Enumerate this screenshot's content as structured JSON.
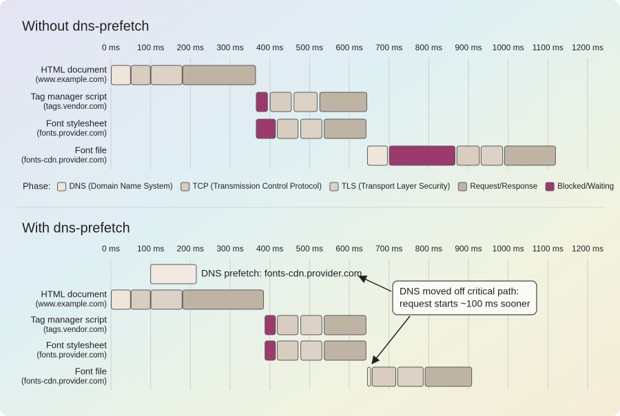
{
  "chart_data": [
    {
      "type": "gantt",
      "title": "Without dns-prefetch",
      "categories": [
        [
          "HTML document",
          "(www.example.com)"
        ],
        [
          "Tag manager script",
          "(tags.vendor.com)"
        ],
        [
          "Font stylesheet",
          "(fonts.provider.com)"
        ],
        [
          "Font file",
          "(fonts-cdn.provider.com)"
        ]
      ],
      "xlim": [
        0,
        1200
      ],
      "xticks": [
        {
          "value": 0,
          "label": "0 ms"
        },
        {
          "value": 100,
          "label": "100 ms"
        },
        {
          "value": 200,
          "label": "200 ms"
        },
        {
          "value": 300,
          "label": "300 ms"
        },
        {
          "value": 400,
          "label": "400 ms"
        },
        {
          "value": 500,
          "label": "500 ms"
        },
        {
          "value": 600,
          "label": "600 ms"
        },
        {
          "value": 700,
          "label": "700 ms"
        },
        {
          "value": 800,
          "label": "800 ms"
        },
        {
          "value": 900,
          "label": "900 ms"
        },
        {
          "value": 1000,
          "label": "1000 ms"
        },
        {
          "value": 1100,
          "label": "1100 ms"
        },
        {
          "value": 1200,
          "label": "1200 ms"
        }
      ],
      "grid": true,
      "legend_title": "Phase:",
      "series": [
        {
          "name": "DNS (Domain Name System)",
          "color": "#eee5db",
          "values": [
            [
              0,
              50
            ],
            null,
            null,
            [
              645,
              697
            ]
          ]
        },
        {
          "name": "TCP (Transmission Control Protocol)",
          "color": "#d8cdbf",
          "values": [
            [
              50,
              100
            ],
            [
              400,
              455
            ],
            [
              418,
              472
            ],
            [
              870,
              928
            ]
          ]
        },
        {
          "name": "TLS (Transport Layer Security)",
          "color": "#dcd2c5",
          "values": [
            [
              100,
              180
            ],
            [
              460,
              520
            ],
            [
              477,
              532
            ],
            [
              931,
              987
            ]
          ]
        },
        {
          "name": "Request/Response",
          "color": "#bfb4a4",
          "values": [
            [
              180,
              365
            ],
            [
              525,
              645
            ],
            [
              536,
              643
            ],
            [
              990,
              1120
            ]
          ]
        },
        {
          "name": "Blocked/Waiting",
          "color": "#9c3a6c",
          "values": [
            null,
            [
              365,
              395
            ],
            [
              365,
              415
            ],
            [
              700,
              867
            ]
          ]
        }
      ]
    },
    {
      "type": "gantt",
      "title": "With dns-prefetch",
      "categories": [
        [
          "HTML document",
          "(www.example.com)"
        ],
        [
          "Tag manager script",
          "(tags.vendor.com)"
        ],
        [
          "Font stylesheet",
          "(fonts.provider.com)"
        ],
        [
          "Font file",
          "(fonts-cdn.provider.com)"
        ]
      ],
      "xlim": [
        0,
        1200
      ],
      "xticks": [
        {
          "value": 0,
          "label": "0 ms"
        },
        {
          "value": 100,
          "label": "100 ms"
        },
        {
          "value": 200,
          "label": "200 ms"
        },
        {
          "value": 300,
          "label": "300 ms"
        },
        {
          "value": 400,
          "label": "400 ms"
        },
        {
          "value": 500,
          "label": "500 ms"
        },
        {
          "value": 600,
          "label": "600 ms"
        },
        {
          "value": 700,
          "label": "700 ms"
        },
        {
          "value": 800,
          "label": "800 ms"
        },
        {
          "value": 900,
          "label": "900 ms"
        },
        {
          "value": 1000,
          "label": "1000 ms"
        },
        {
          "value": 1100,
          "label": "1100 ms"
        },
        {
          "value": 1200,
          "label": "1200 ms"
        }
      ],
      "grid": true,
      "prefetch": {
        "label": "DNS prefetch: fonts-cdn.provider.com",
        "values": [
          100,
          215
        ],
        "color": "#f2eae2"
      },
      "annotation": [
        "DNS moved off critical path:",
        "request starts ~100 ms sooner"
      ],
      "series": [
        {
          "color": "#eee5db",
          "values": [
            [
              0,
              50
            ],
            null,
            null,
            [
              645,
              655
            ]
          ]
        },
        {
          "color": "#d8cdbf",
          "values": [
            [
              50,
              100
            ],
            [
              418,
              472
            ],
            [
              418,
              472
            ],
            [
              657,
              718
            ]
          ]
        },
        {
          "color": "#dcd2c5",
          "values": [
            [
              100,
              180
            ],
            [
              477,
              532
            ],
            [
              477,
              532
            ],
            [
              721,
              787
            ]
          ]
        },
        {
          "color": "#bfb4a4",
          "values": [
            [
              180,
              385
            ],
            [
              536,
              643
            ],
            [
              536,
              643
            ],
            [
              790,
              909
            ]
          ]
        },
        {
          "color": "#9c3a6c",
          "values": [
            null,
            [
              387,
              415
            ],
            [
              387,
              415
            ],
            null
          ]
        }
      ]
    }
  ]
}
